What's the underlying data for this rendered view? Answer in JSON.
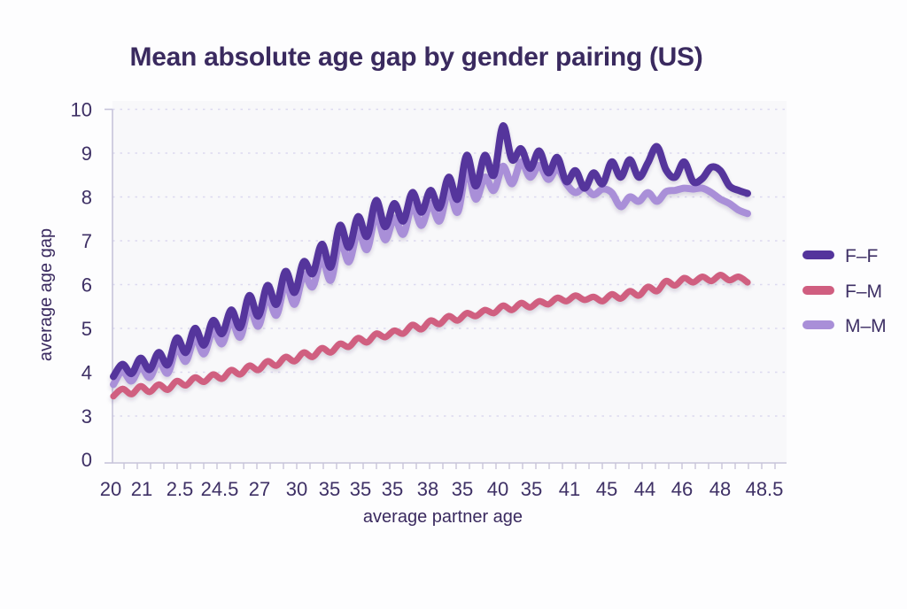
{
  "title": "Mean absolute age gap by gender pairing (US)",
  "x_axis": {
    "label": "average partner age",
    "tick_labels": [
      "20",
      "21",
      "2.5",
      "24.5",
      "27",
      "30",
      "35",
      "35",
      "35",
      "38",
      "35",
      "40",
      "35",
      "41",
      "45",
      "44",
      "46",
      "48",
      "48.5"
    ]
  },
  "y_axis": {
    "label": "average age gap",
    "tick_labels": [
      "10",
      "9",
      "8",
      "7",
      "6",
      "5",
      "4",
      "3",
      "0"
    ]
  },
  "legend": [
    {
      "label": "F–F",
      "color": "#54349c"
    },
    {
      "label": "F–M",
      "color": "#d05e80"
    },
    {
      "label": "M–M",
      "color": "#a98fd8"
    }
  ],
  "colors": {
    "title_text": "#3a2a5f",
    "tick_text": "#3e3065",
    "axis_line": "#c7c4da",
    "gridline": "#dcd9ef",
    "plot_bg": "#f8f8fa",
    "page_bg": "#fdfdfe",
    "series_ff": "#54349c",
    "series_fm": "#d05e80",
    "series_mm": "#a98fd8"
  },
  "chart_data": {
    "type": "line",
    "title": "Mean absolute age gap by gender pairing (US)",
    "xlabel": "average partner age",
    "ylabel": "average age gap",
    "x_tick_labels": [
      "20",
      "21",
      "2.5",
      "24.5",
      "27",
      "30",
      "35",
      "35",
      "35",
      "38",
      "35",
      "40",
      "35",
      "41",
      "45",
      "44",
      "46",
      "48",
      "48.5"
    ],
    "y_ticks": [
      10,
      9,
      8,
      7,
      6,
      5,
      4,
      3,
      0
    ],
    "ylim": [
      0,
      10
    ],
    "grid": "horizontal-dashed",
    "legend_position": "right",
    "n_points": 71,
    "series": [
      {
        "name": "F-F",
        "color": "#54349c",
        "values": [
          3.9,
          4.18,
          3.97,
          4.32,
          4.06,
          4.45,
          4.17,
          4.78,
          4.45,
          5.0,
          4.62,
          5.18,
          4.88,
          5.42,
          5.02,
          5.75,
          5.28,
          5.98,
          5.55,
          6.3,
          5.82,
          6.52,
          6.25,
          6.92,
          6.4,
          7.35,
          6.85,
          7.55,
          7.1,
          7.92,
          7.32,
          7.85,
          7.45,
          8.1,
          7.65,
          8.15,
          7.75,
          8.45,
          7.95,
          8.95,
          8.25,
          8.95,
          8.5,
          9.62,
          8.85,
          9.1,
          8.65,
          9.05,
          8.55,
          8.9,
          8.35,
          8.6,
          8.2,
          8.55,
          8.3,
          8.8,
          8.45,
          8.85,
          8.45,
          8.78,
          9.15,
          8.62,
          8.45,
          8.8,
          8.35,
          8.42,
          8.68,
          8.6,
          8.25,
          8.15,
          8.08
        ]
      },
      {
        "name": "F-M",
        "color": "#d05e80",
        "values": [
          3.45,
          3.62,
          3.5,
          3.68,
          3.55,
          3.72,
          3.6,
          3.8,
          3.7,
          3.88,
          3.78,
          3.95,
          3.85,
          4.05,
          3.95,
          4.15,
          4.05,
          4.25,
          4.15,
          4.35,
          4.25,
          4.45,
          4.35,
          4.55,
          4.45,
          4.65,
          4.58,
          4.78,
          4.68,
          4.88,
          4.8,
          4.95,
          4.88,
          5.08,
          4.98,
          5.18,
          5.1,
          5.28,
          5.18,
          5.35,
          5.28,
          5.42,
          5.35,
          5.52,
          5.42,
          5.58,
          5.48,
          5.62,
          5.55,
          5.7,
          5.62,
          5.75,
          5.65,
          5.72,
          5.62,
          5.78,
          5.68,
          5.85,
          5.75,
          5.95,
          5.85,
          6.08,
          5.98,
          6.15,
          6.05,
          6.18,
          6.08,
          6.22,
          6.1,
          6.18,
          6.05
        ]
      },
      {
        "name": "M-M",
        "color": "#a98fd8",
        "values": [
          3.72,
          4.02,
          3.8,
          4.12,
          3.88,
          4.25,
          3.98,
          4.55,
          4.25,
          4.78,
          4.42,
          4.95,
          4.65,
          5.18,
          4.8,
          5.48,
          5.05,
          5.72,
          5.3,
          6.02,
          5.55,
          6.22,
          5.95,
          6.6,
          6.1,
          7.0,
          6.52,
          7.22,
          6.8,
          7.6,
          7.02,
          7.52,
          7.15,
          7.8,
          7.35,
          7.85,
          7.45,
          8.15,
          7.65,
          8.6,
          7.95,
          8.45,
          8.15,
          8.7,
          8.3,
          8.8,
          8.45,
          8.72,
          8.4,
          8.65,
          8.3,
          8.1,
          8.22,
          8.05,
          8.18,
          8.1,
          7.78,
          8.0,
          7.9,
          8.1,
          7.9,
          8.12,
          8.15,
          8.2,
          8.18,
          8.2,
          8.1,
          7.95,
          7.85,
          7.7,
          7.62
        ]
      }
    ]
  }
}
